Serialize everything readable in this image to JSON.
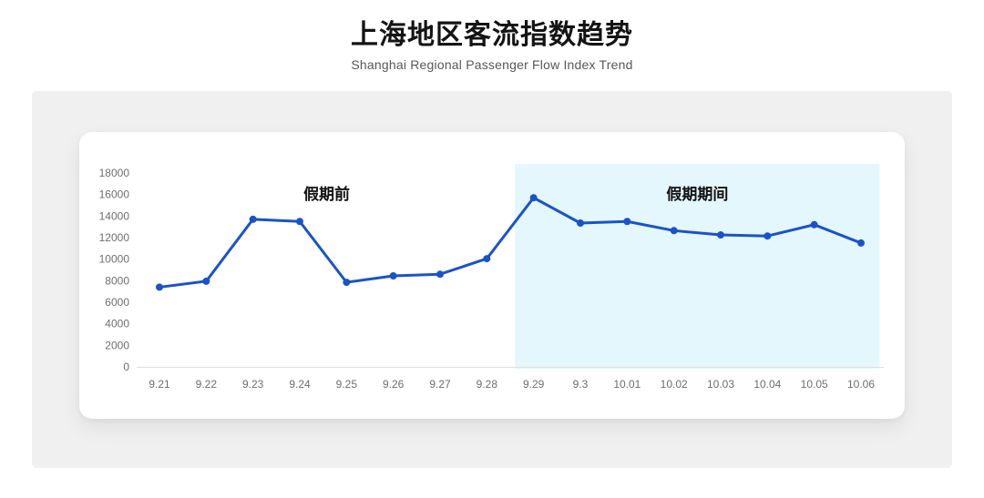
{
  "page": {
    "title": "上海地区客流指数趋势",
    "subtitle": "Shanghai Regional Passenger Flow Index Trend"
  },
  "chart_data": {
    "type": "line",
    "title": "上海地区客流指数趋势",
    "subtitle": "Shanghai Regional Passenger Flow Index Trend",
    "categories": [
      "9.21",
      "9.22",
      "9.23",
      "9.24",
      "9.25",
      "9.26",
      "9.27",
      "9.28",
      "9.29",
      "9.3",
      "10.01",
      "10.02",
      "10.03",
      "10.04",
      "10.05",
      "10.06"
    ],
    "values": [
      7400,
      7950,
      13700,
      13500,
      7850,
      8450,
      8600,
      10050,
      15700,
      13350,
      13500,
      12650,
      12250,
      12150,
      13200,
      11500
    ],
    "ylim": [
      0,
      18000
    ],
    "ytick_step": 2000,
    "xlabel": "",
    "ylabel": "",
    "grid": false,
    "legend": "none",
    "line_color": "#1a53c8",
    "axis_line_color": "#e0e0e0",
    "label_color": "#6e6e6e",
    "annotation_pre_holiday": "假期前",
    "annotation_holiday": "假期期间",
    "highlight": {
      "from": "9.29",
      "to": "10.06",
      "color": "#e4f7fc"
    }
  }
}
